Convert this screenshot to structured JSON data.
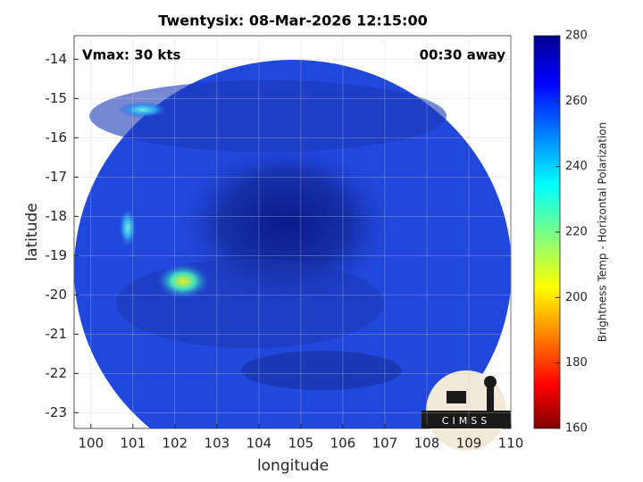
{
  "chart_data": {
    "type": "image",
    "title": "Twentysix: 08-Mar-2026 12:15:00",
    "annotations": [
      "Vmax: 30 kts",
      "00:30 away"
    ],
    "xlabel": "longitude",
    "ylabel": "latitude",
    "xlim": [
      99.6,
      110
    ],
    "xticks": [
      100,
      101,
      102,
      103,
      104,
      105,
      106,
      107,
      108,
      109,
      110
    ],
    "ylim": [
      -23.4,
      -13.4
    ],
    "yticks": [
      -23,
      -22,
      -21,
      -20,
      -19,
      -18,
      -17,
      -16,
      -15,
      -14
    ],
    "grid": true,
    "colorbar": {
      "label": "Brightness Temp - Horizontal Polarization",
      "clim": [
        160,
        280
      ],
      "ticks": [
        160,
        180,
        200,
        220,
        240,
        260,
        280
      ]
    },
    "logo": "CIMSS"
  }
}
